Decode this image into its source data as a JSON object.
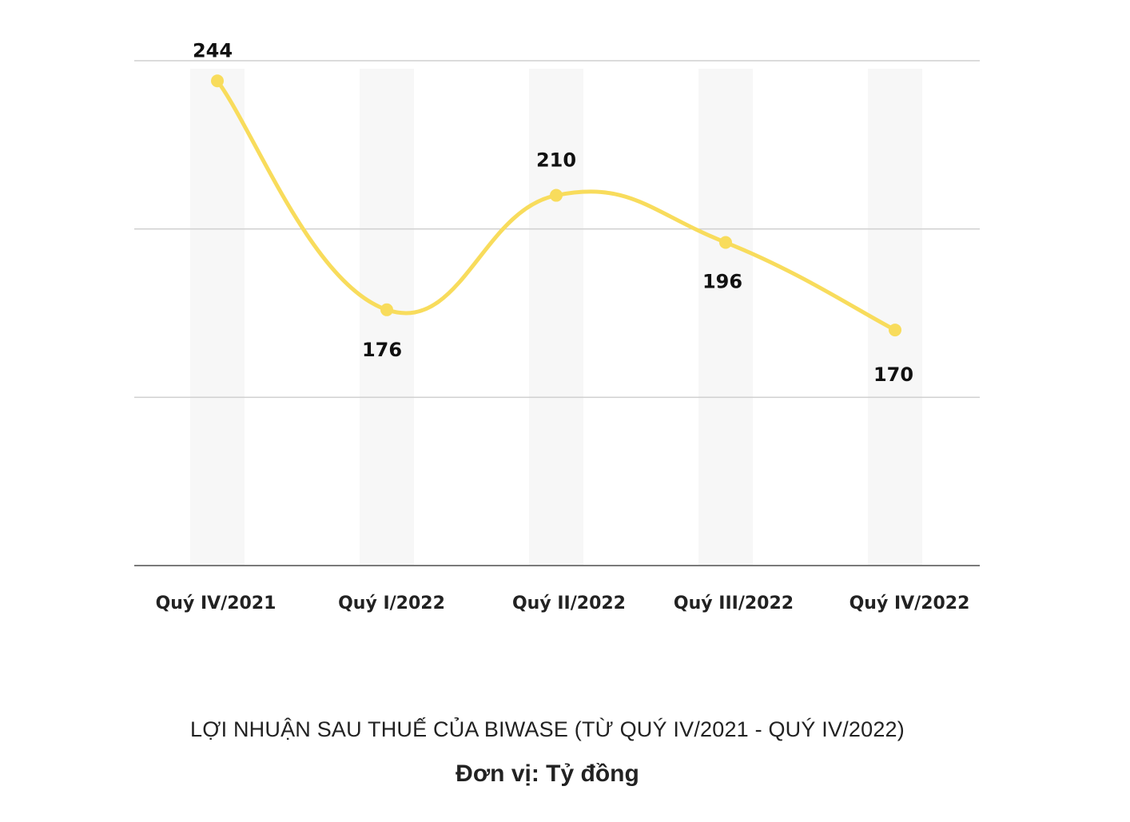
{
  "chart_data": {
    "type": "line",
    "categories": [
      "Quý IV/2021",
      "Quý I/2022",
      "Quý II/2022",
      "Quý III/2022",
      "Quý IV/2022"
    ],
    "values": [
      244,
      176,
      210,
      196,
      170
    ],
    "data_labels": [
      "244",
      "176",
      "210",
      "196",
      "170"
    ],
    "title": "LỢI NHUẬN SAU THUẾ CỦA BIWASE  (TỪ QUÝ IV/2021 - QUÝ IV/2022)",
    "unit_label": "Đơn vị: Tỷ đồng",
    "ylim": [
      100,
      250
    ],
    "grid": true,
    "line_color": "#F8DC5C",
    "band_color": "#F7F7F7",
    "grid_color": "#CFCFCF",
    "axis_color": "#7A7A7A"
  }
}
